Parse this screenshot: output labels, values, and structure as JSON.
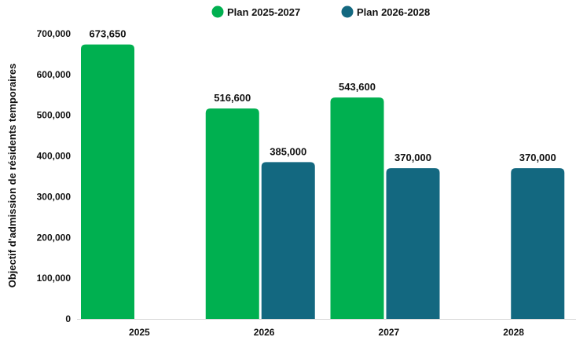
{
  "chart_data": {
    "type": "bar",
    "categories": [
      "2025",
      "2026",
      "2027",
      "2028"
    ],
    "series": [
      {
        "name": "Plan 2025-2027",
        "color": "#00b050",
        "values": [
          673650,
          516600,
          543600,
          null
        ],
        "labels": [
          "673,650",
          "516,600",
          "543,600",
          ""
        ]
      },
      {
        "name": "Plan 2026-2028",
        "color": "#136880",
        "values": [
          null,
          385000,
          370000,
          370000
        ],
        "labels": [
          "",
          "385,000",
          "370,000",
          "370,000"
        ]
      }
    ],
    "ylabel": "Objectif d'admission de résidents temporaires",
    "ylim": [
      0,
      700000
    ],
    "yticks": [
      0,
      100000,
      200000,
      300000,
      400000,
      500000,
      600000,
      700000
    ],
    "ytick_labels": [
      "0",
      "100,000",
      "200,000",
      "300,000",
      "400,000",
      "500,000",
      "600,000",
      "700,000"
    ],
    "grid": false,
    "legend_position": "top-center"
  }
}
